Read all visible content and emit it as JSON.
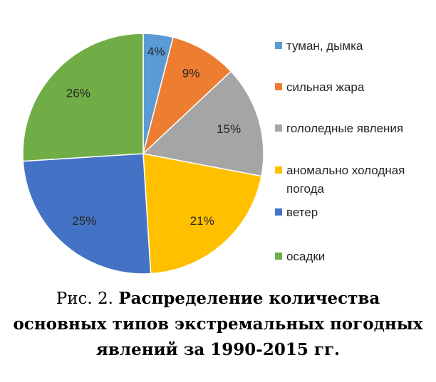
{
  "chart_data": {
    "type": "pie",
    "categories": [
      "туман, дымка",
      "сильная жара",
      "гололедные явления",
      "аномально холодная погода",
      "ветер",
      "осадки"
    ],
    "values": [
      4,
      9,
      15,
      21,
      25,
      26
    ],
    "data_labels": [
      "4%",
      "9%",
      "15%",
      "21%",
      "25%",
      "26%"
    ],
    "legend_lines": [
      [
        "туман, дымка"
      ],
      [
        "сильная жара"
      ],
      [
        "гололедные явления"
      ],
      [
        "аномально холодная",
        "погода"
      ],
      [
        "ветер"
      ],
      [
        "осадки"
      ]
    ],
    "colors": [
      "#5b9bd5",
      "#ed7d31",
      "#a5a5a5",
      "#ffc000",
      "#4472c4",
      "#70ad47"
    ],
    "legend_position": "right",
    "start_angle": "12 o'clock, clockwise"
  },
  "caption": {
    "prefix": "Рис. 2.",
    "title": "Распределение количества основных типов экстремальных погодных явлений за 1990-2015 гг."
  }
}
